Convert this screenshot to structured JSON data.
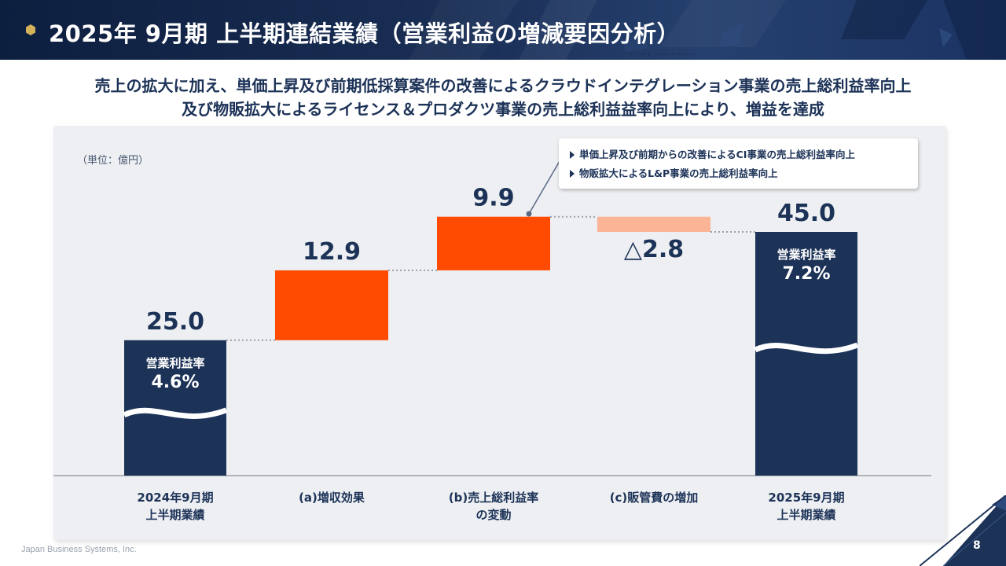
{
  "header": {
    "title": "2025年 9月期 上半期連結業績（営業利益の増減要因分析）"
  },
  "subtitle": {
    "line1": "売上の拡大に加え、単価上昇及び前期低採算案件の改善によるクラウドインテグレーション事業の売上総利益率向上",
    "line2": "及び物販拡大によるライセンス＆プロダクツ事業の売上総利益益率向上により、増益を達成"
  },
  "callout": {
    "items": [
      "単価上昇及び前期からの改善によるCI事業の売上総利益率向上",
      "物販拡大によるL&P事業の売上総利益率向上"
    ]
  },
  "chart_data": {
    "type": "waterfall",
    "unit_label": "（単位：億円）",
    "categories": [
      [
        "2024年9月期",
        "上半期業績"
      ],
      [
        "(a)増収効果"
      ],
      [
        "(b)売上総利益率",
        "の変動"
      ],
      [
        "(c)販管費の増加"
      ],
      [
        "2025年9月期",
        "上半期業績"
      ]
    ],
    "bars": [
      {
        "kind": "total",
        "value": 25.0,
        "label": "25.0",
        "inner_title": "営業利益率",
        "inner_value": "4.6%",
        "color": "#1c3257"
      },
      {
        "kind": "increase",
        "value": 12.9,
        "label": "12.9",
        "color": "#ff4b00"
      },
      {
        "kind": "increase",
        "value": 9.9,
        "label": "9.9",
        "color": "#ff4b00"
      },
      {
        "kind": "decrease",
        "value": -2.8,
        "label": "△2.8",
        "color": "#fbb496"
      },
      {
        "kind": "total",
        "value": 45.0,
        "label": "45.0",
        "inner_title": "営業利益率",
        "inner_value": "7.2%",
        "color": "#1c3257"
      }
    ]
  },
  "footer": {
    "company": "Japan Business Systems, Inc.",
    "page_number": "8"
  }
}
